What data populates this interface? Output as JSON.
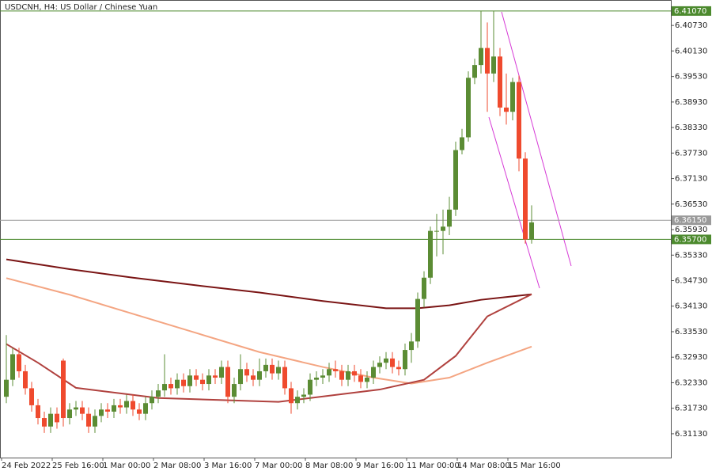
{
  "chart_data": {
    "type": "candlestick",
    "title": "USDCNH, H4:  US Dollar / Chinese Yuan",
    "categories": [
      "24 Feb 2022",
      null,
      null,
      null,
      null,
      null,
      null,
      null,
      "25 Feb 16:00",
      null,
      null,
      null,
      null,
      null,
      null,
      null,
      "1 Mar 00:00",
      null,
      null,
      null,
      null,
      null,
      null,
      null,
      "2 Mar 08:00",
      null,
      null,
      null,
      null,
      null,
      null,
      null,
      "3 Mar 16:00",
      null,
      null,
      null,
      null,
      null,
      null,
      null,
      "7 Mar 00:00",
      null,
      null,
      null,
      null,
      null,
      null,
      null,
      "8 Mar 08:00",
      null,
      null,
      null,
      null,
      null,
      null,
      null,
      "9 Mar 16:00",
      null,
      null,
      null,
      null,
      null,
      null,
      null,
      "11 Mar 00:00",
      null,
      null,
      null,
      null,
      null,
      null,
      null,
      "14 Mar 08:00",
      null,
      null,
      null,
      null,
      null,
      null,
      null,
      "15 Mar 16:00",
      null,
      null,
      null
    ],
    "open": [
      6.32,
      6.324,
      6.33,
      6.326,
      6.322,
      6.318,
      6.315,
      6.313,
      6.316,
      6.3285,
      6.315,
      6.317,
      6.3175,
      6.316,
      6.313,
      6.3155,
      6.317,
      6.3165,
      6.318,
      6.3175,
      6.319,
      6.317,
      6.316,
      6.3185,
      6.32,
      6.3215,
      6.323,
      6.322,
      6.324,
      6.3225,
      6.325,
      6.324,
      6.323,
      6.325,
      6.3245,
      6.327,
      6.32,
      6.323,
      6.3265,
      6.325,
      6.324,
      6.326,
      6.3275,
      6.3255,
      6.327,
      6.322,
      6.3185,
      6.32,
      6.3205,
      6.324,
      6.3245,
      6.325,
      6.3265,
      6.326,
      6.324,
      6.326,
      6.325,
      6.3235,
      6.3245,
      6.327,
      6.328,
      6.329,
      6.327,
      6.3265,
      6.331,
      6.333,
      6.343,
      6.348,
      6.359,
      6.359,
      6.36,
      6.364,
      6.378,
      6.381,
      6.395,
      6.398,
      6.402,
      6.396,
      6.4,
      6.388,
      6.387,
      6.394,
      6.376,
      6.357
    ],
    "high": [
      6.3345,
      6.3315,
      6.3315,
      6.3275,
      6.3235,
      6.3195,
      6.3165,
      6.3175,
      6.3175,
      6.329,
      6.3185,
      6.319,
      6.319,
      6.3175,
      6.317,
      6.3185,
      6.3185,
      6.3195,
      6.3195,
      6.3205,
      6.3205,
      6.3185,
      6.32,
      6.3215,
      6.323,
      6.33,
      6.3245,
      6.3255,
      6.3255,
      6.3265,
      6.3265,
      6.3255,
      6.3265,
      6.3265,
      6.3285,
      6.3285,
      6.3245,
      6.33,
      6.328,
      6.3265,
      6.329,
      6.329,
      6.329,
      6.3285,
      6.3285,
      6.3235,
      6.3215,
      6.322,
      6.3255,
      6.326,
      6.3265,
      6.328,
      6.3285,
      6.3275,
      6.3275,
      6.3275,
      6.3265,
      6.326,
      6.3285,
      6.3295,
      6.3305,
      6.3305,
      6.3285,
      6.3325,
      6.335,
      6.3445,
      6.3495,
      6.36,
      6.363,
      6.364,
      6.367,
      6.38,
      6.383,
      6.3965,
      6.3995,
      6.4107,
      6.408,
      6.4107,
      6.402,
      6.396,
      6.395,
      6.3955,
      6.3775,
      6.365
    ],
    "low": [
      6.3185,
      6.3225,
      6.3245,
      6.3205,
      6.3165,
      6.3135,
      6.3115,
      6.3115,
      6.3125,
      6.313,
      6.3135,
      6.3155,
      6.3145,
      6.3115,
      6.3115,
      6.314,
      6.315,
      6.315,
      6.316,
      6.316,
      6.3155,
      6.3145,
      6.3145,
      6.317,
      6.3185,
      6.32,
      6.3205,
      6.3205,
      6.321,
      6.321,
      6.3225,
      6.3215,
      6.3215,
      6.323,
      6.323,
      6.3185,
      6.3185,
      6.3215,
      6.3235,
      6.3225,
      6.3225,
      6.3245,
      6.324,
      6.324,
      6.3205,
      6.316,
      6.317,
      6.3185,
      6.319,
      6.3225,
      6.323,
      6.3235,
      6.3245,
      6.3225,
      6.3225,
      6.3235,
      6.322,
      6.322,
      6.323,
      6.3255,
      6.3265,
      6.3255,
      6.325,
      6.325,
      6.328,
      6.3315,
      6.341,
      6.3465,
      6.353,
      6.3535,
      6.358,
      6.3625,
      6.377,
      6.38,
      6.3935,
      6.396,
      6.387,
      6.394,
      6.386,
      6.384,
      6.385,
      6.373,
      6.356,
      6.356
    ],
    "close": [
      6.324,
      6.33,
      6.326,
      6.322,
      6.318,
      6.315,
      6.313,
      6.316,
      6.314,
      6.315,
      6.317,
      6.3175,
      6.316,
      6.313,
      6.3155,
      6.317,
      6.3165,
      6.318,
      6.3175,
      6.319,
      6.317,
      6.316,
      6.3185,
      6.32,
      6.3215,
      6.323,
      6.322,
      6.324,
      6.3225,
      6.325,
      6.324,
      6.323,
      6.325,
      6.3245,
      6.327,
      6.32,
      6.323,
      6.3265,
      6.325,
      6.324,
      6.326,
      6.3275,
      6.3255,
      6.327,
      6.322,
      6.3185,
      6.32,
      6.3205,
      6.324,
      6.3245,
      6.325,
      6.3265,
      6.326,
      6.324,
      6.326,
      6.325,
      6.3235,
      6.3245,
      6.327,
      6.328,
      6.329,
      6.327,
      6.3265,
      6.331,
      6.333,
      6.343,
      6.348,
      6.359,
      6.359,
      6.36,
      6.364,
      6.378,
      6.381,
      6.395,
      6.398,
      6.402,
      6.396,
      6.4,
      6.388,
      6.387,
      6.394,
      6.376,
      6.357,
      6.361
    ],
    "up_color": "#5b8c34",
    "down_color": "#ef4a2e",
    "moving_averages": [
      {
        "color": "#7a1414",
        "x": [
          0,
          10,
          20,
          30,
          40,
          50,
          60,
          65,
          70,
          75,
          83
        ],
        "values": [
          6.3523,
          6.35,
          6.348,
          6.3462,
          6.3445,
          6.3425,
          6.3408,
          6.3408,
          6.3415,
          6.3428,
          6.3441
        ]
      },
      {
        "color": "#f4a582",
        "x": [
          0,
          10,
          20,
          30,
          40,
          50,
          58,
          64,
          70,
          76,
          83
        ],
        "values": [
          6.3479,
          6.344,
          6.3395,
          6.335,
          6.3305,
          6.327,
          6.3245,
          6.3231,
          6.3245,
          6.328,
          6.3318
        ]
      },
      {
        "color": "#b0413e",
        "x": [
          0,
          5,
          11,
          24,
          43,
          59,
          66,
          71,
          76,
          83
        ],
        "values": [
          6.3324,
          6.328,
          6.3221,
          6.3197,
          6.3188,
          6.3217,
          6.324,
          6.3296,
          6.3389,
          6.3441
        ]
      }
    ],
    "levels": [
      {
        "value": 6.4107,
        "label": "6.41070",
        "color": "#4c8a2e"
      },
      {
        "value": 6.3615,
        "label": "6.36150",
        "color": "#9a9a9a"
      },
      {
        "value": 6.357,
        "label": "6.35700",
        "color": "#4c8a2e"
      }
    ],
    "ylim": [
      6.3057,
      6.4131
    ],
    "yticks": [
      {
        "value": 6.3113,
        "label": "6.31130"
      },
      {
        "value": 6.3173,
        "label": "6.31730"
      },
      {
        "value": 6.3233,
        "label": "6.32330"
      },
      {
        "value": 6.3293,
        "label": "6.32930"
      },
      {
        "value": 6.3353,
        "label": "6.33530"
      },
      {
        "value": 6.3413,
        "label": "6.34130"
      },
      {
        "value": 6.3473,
        "label": "6.34730"
      },
      {
        "value": 6.3533,
        "label": "6.35330"
      },
      {
        "value": 6.3593,
        "label": "6.35930"
      },
      {
        "value": 6.3653,
        "label": "6.36530"
      },
      {
        "value": 6.3713,
        "label": "6.37130"
      },
      {
        "value": 6.3773,
        "label": "6.37730"
      },
      {
        "value": 6.3833,
        "label": "6.38330"
      },
      {
        "value": 6.3893,
        "label": "6.38930"
      },
      {
        "value": 6.3953,
        "label": "6.39530"
      },
      {
        "value": 6.4013,
        "label": "6.40130"
      },
      {
        "value": 6.4073,
        "label": "6.40730"
      }
    ]
  }
}
